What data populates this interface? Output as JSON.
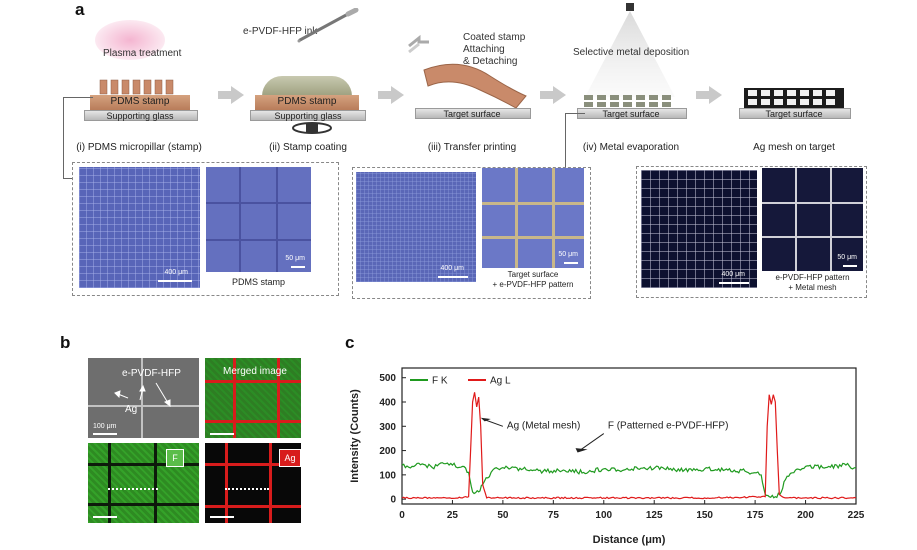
{
  "panel_a": {
    "letter": "a",
    "plasma_label": "Plasma treatment",
    "ink_label": "e-PVDF-HFP ink",
    "stamp_label": "PDMS stamp",
    "glass_label": "Supporting glass",
    "coated_label_1": "Coated stamp",
    "coated_label_2": "Attaching",
    "coated_label_3": "& Detaching",
    "deposition_label": "Selective metal deposition",
    "target_label": "Target surface",
    "steps": [
      "(i) PDMS micropillar (stamp)",
      "(ii) Stamp coating",
      "(iii) Transfer printing",
      "(iv) Metal evaporation",
      "Ag mesh on target"
    ],
    "micro": {
      "scale_400": "400 μm",
      "scale_50": "50 μm",
      "caption_1": "PDMS stamp",
      "caption_2_line1": "Target surface",
      "caption_2_line2": "+ e-PVDF-HFP pattern",
      "caption_3_line1": "e-PVDF-HFP pattern",
      "caption_3_line2": "+ Metal mesh"
    }
  },
  "panel_b": {
    "letter": "b",
    "sem_label": "e-PVDF-HFP",
    "ag_label": "Ag",
    "scale": "100 μm",
    "merged_label": "Merged image",
    "f_badge": "F",
    "ag_badge": "Ag",
    "colors": {
      "fluor_green": "#2e8b22",
      "fluor_red": "#d81c1c"
    }
  },
  "panel_c": {
    "letter": "c"
  },
  "chart_data": {
    "type": "line",
    "xlabel": "Distance (μm)",
    "ylabel": "Intensity (Counts)",
    "xlim": [
      0,
      225
    ],
    "ylim": [
      -20,
      540
    ],
    "x_ticks": [
      0,
      25,
      50,
      75,
      100,
      125,
      150,
      175,
      200,
      225
    ],
    "y_ticks": [
      0,
      100,
      200,
      300,
      400,
      500
    ],
    "legend_position": "top-left",
    "grid": false,
    "series": [
      {
        "name": "F K",
        "color": "#1f9a1f",
        "x": [
          0,
          5,
          10,
          15,
          20,
          25,
          30,
          33,
          35,
          38,
          40,
          45,
          50,
          60,
          70,
          80,
          90,
          100,
          110,
          120,
          130,
          140,
          150,
          160,
          170,
          178,
          180,
          182,
          185,
          188,
          190,
          195,
          200,
          210,
          220,
          225
        ],
        "y": [
          140,
          135,
          145,
          130,
          150,
          140,
          135,
          110,
          30,
          30,
          60,
          120,
          130,
          125,
          115,
          120,
          110,
          125,
          120,
          130,
          125,
          120,
          125,
          120,
          115,
          100,
          20,
          10,
          10,
          30,
          80,
          120,
          135,
          130,
          140,
          130
        ]
      },
      {
        "name": "Ag L",
        "color": "#e01a1a",
        "x": [
          0,
          30,
          33,
          34,
          35,
          36,
          37,
          38,
          39,
          40,
          42,
          60,
          100,
          150,
          180,
          181,
          182,
          183,
          184,
          185,
          186,
          187,
          190,
          225
        ],
        "y": [
          5,
          5,
          10,
          200,
          400,
          440,
          380,
          420,
          300,
          60,
          5,
          5,
          5,
          5,
          10,
          300,
          430,
          390,
          430,
          400,
          200,
          20,
          5,
          5
        ]
      }
    ],
    "annotations": [
      {
        "text": "Ag (Metal mesh)",
        "x": 52,
        "y": 290
      },
      {
        "text": "F (Patterned e-PVDF-HFP)",
        "x": 102,
        "y": 290
      }
    ]
  }
}
